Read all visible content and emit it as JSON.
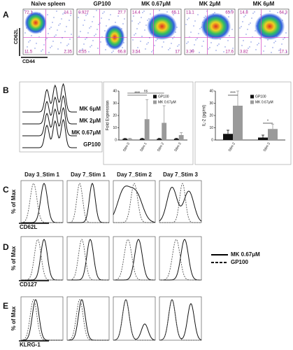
{
  "panel_a": {
    "label": "A",
    "y_axis": "CD62L",
    "x_axis": "CD44",
    "plots": [
      {
        "title": "Naïve spleen",
        "quadrants": [
          72.1,
          14.1,
          11.5,
          2.35
        ]
      },
      {
        "title": "GP100",
        "quadrants": [
          0.927,
          27.7,
          4.55,
          66.8
        ]
      },
      {
        "title": "MK 0.67μM",
        "quadrants": [
          14.4,
          65.1,
          3.54,
          17
        ]
      },
      {
        "title": "MK 2μM",
        "quadrants": [
          13.1,
          65.9,
          3.39,
          17.6
        ]
      },
      {
        "title": "MK 6μM",
        "quadrants": [
          14.8,
          64.3,
          3.82,
          17.1
        ]
      }
    ]
  },
  "panel_b": {
    "label": "B",
    "histogram_labels": [
      "MK 6μM",
      "MK 2μM",
      "MK 0.67μM",
      "GP100"
    ]
  },
  "chart_data": [
    {
      "type": "bar",
      "ylabel": "Fold Expression",
      "categories": [
        "Stim 0",
        "Stim 1",
        "Stim 2",
        "Stim 3"
      ],
      "series": [
        {
          "name": "GP100",
          "color": "#111111",
          "values": [
            1,
            1,
            1,
            1
          ],
          "errors": [
            0.3,
            0.4,
            0.4,
            0.4
          ]
        },
        {
          "name": "MK 0.67μM",
          "color": "#9a9a9a",
          "values": [
            1,
            17,
            14,
            4
          ],
          "errors": [
            0.4,
            16,
            14,
            2
          ]
        }
      ],
      "ylim": [
        0,
        40
      ],
      "yticks": [
        0,
        10,
        20,
        30,
        40
      ],
      "annotations": [
        "****",
        "ns"
      ]
    },
    {
      "type": "bar",
      "ylabel": "IL-2 (pg/ml)",
      "categories": [
        "Stim 2",
        "Stim 3"
      ],
      "series": [
        {
          "name": "GP100",
          "color": "#111111",
          "values": [
            5,
            2
          ],
          "errors": [
            3,
            2
          ]
        },
        {
          "name": "MK 0.67μM",
          "color": "#9a9a9a",
          "values": [
            28,
            9
          ],
          "errors": [
            12,
            4
          ]
        }
      ],
      "ylim": [
        0,
        40
      ],
      "yticks": [
        0,
        10,
        20,
        30,
        40
      ],
      "annotations": [
        "****",
        "*"
      ]
    }
  ],
  "panel_c": {
    "label": "C",
    "titles": [
      "Day 3_Stim 1",
      "Day 7_Stim 1",
      "Day 7_Stim 2",
      "Day 7_Stim 3"
    ],
    "y_axis": "% of Max",
    "x_axis": "CD62L"
  },
  "panel_d": {
    "label": "D",
    "y_axis": "% of Max",
    "x_axis": "CD127"
  },
  "panel_e": {
    "label": "E",
    "y_axis": "% of Max",
    "x_axis": "KLRG-1"
  },
  "legend": [
    "MK 0.67μM",
    "GP100"
  ]
}
